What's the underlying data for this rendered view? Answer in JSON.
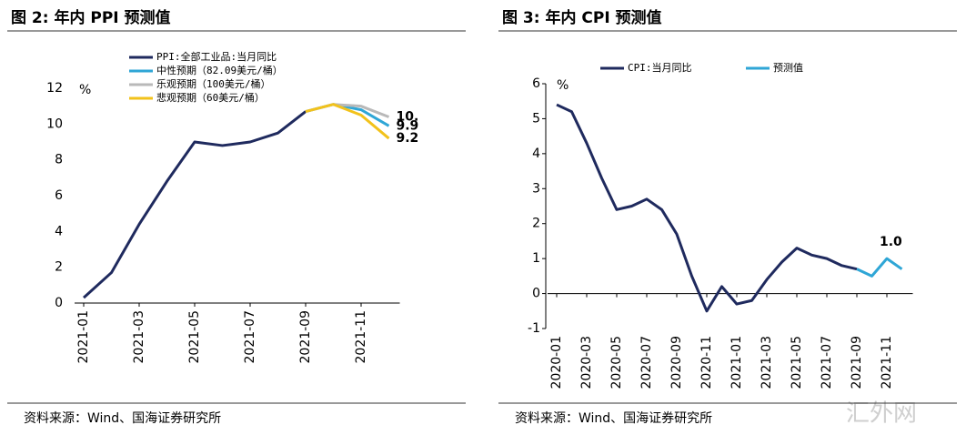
{
  "watermark": "汇外网",
  "chart_data": [
    {
      "type": "line",
      "title": "图 2:  年内 PPI 预测值",
      "ylabel": "%",
      "source": "资料来源：Wind、国海证券研究所",
      "legend": "upper center",
      "categories": [
        "2021-01",
        null,
        "2021-03",
        null,
        "2021-05",
        null,
        "2021-07",
        null,
        "2021-09",
        null,
        "2021-11",
        null
      ],
      "ylim": [
        0,
        12
      ],
      "yticks": [
        0,
        2,
        4,
        6,
        8,
        10,
        12
      ],
      "series": [
        {
          "name": "PPI:全部工业品:当月同比",
          "color": "#1f2a5e",
          "values": [
            0.3,
            1.7,
            4.4,
            6.8,
            9.0,
            8.8,
            9.0,
            9.5,
            10.7,
            null,
            null,
            null
          ]
        },
        {
          "name": "中性预期（82.09美元/桶）",
          "color": "#2fa6d6",
          "values": [
            null,
            null,
            null,
            null,
            null,
            null,
            null,
            null,
            10.7,
            11.1,
            10.8,
            9.9
          ],
          "value_labels": [
            null,
            null,
            null,
            null,
            null,
            null,
            null,
            null,
            null,
            null,
            null,
            "9.9"
          ]
        },
        {
          "name": "乐观预期（100美元/桶）",
          "color": "#b9b9b9",
          "values": [
            null,
            null,
            null,
            null,
            null,
            null,
            null,
            null,
            10.7,
            11.1,
            11.0,
            10.4
          ],
          "value_labels": [
            null,
            null,
            null,
            null,
            null,
            null,
            null,
            null,
            null,
            null,
            null,
            "10."
          ]
        },
        {
          "name": "悲观预期（60美元/桶）",
          "color": "#f2c21b",
          "values": [
            null,
            null,
            null,
            null,
            null,
            null,
            null,
            null,
            10.7,
            11.1,
            10.5,
            9.2
          ],
          "value_labels": [
            null,
            null,
            null,
            null,
            null,
            null,
            null,
            null,
            null,
            null,
            null,
            "9.2"
          ]
        }
      ]
    },
    {
      "type": "line",
      "title": "图 3:  年内 CPI 预测值",
      "ylabel": "%",
      "source": "资料来源：Wind、国海证券研究所",
      "legend": "upper center",
      "categories": [
        "2020-01",
        null,
        "2020-03",
        null,
        "2020-05",
        null,
        "2020-07",
        null,
        "2020-09",
        null,
        "2020-11",
        null,
        "2021-01",
        null,
        "2021-03",
        null,
        "2021-05",
        null,
        "2021-07",
        null,
        "2021-09",
        null,
        "2021-11",
        null
      ],
      "ylim": [
        -1,
        6
      ],
      "yticks": [
        -1,
        0,
        1,
        2,
        3,
        4,
        5,
        6
      ],
      "series": [
        {
          "name": "CPI:当月同比",
          "color": "#1f2a5e",
          "values": [
            5.4,
            5.2,
            4.3,
            3.3,
            2.4,
            2.5,
            2.7,
            2.4,
            1.7,
            0.5,
            -0.5,
            0.2,
            -0.3,
            -0.2,
            0.4,
            0.9,
            1.3,
            1.1,
            1.0,
            0.8,
            0.7,
            null,
            null,
            null
          ]
        },
        {
          "name": "预测值",
          "color": "#2fa6d6",
          "values": [
            null,
            null,
            null,
            null,
            null,
            null,
            null,
            null,
            null,
            null,
            null,
            null,
            null,
            null,
            null,
            null,
            null,
            null,
            null,
            null,
            0.7,
            0.5,
            1.0,
            0.7
          ],
          "value_labels": [
            null,
            null,
            null,
            null,
            null,
            null,
            null,
            null,
            null,
            null,
            null,
            null,
            null,
            null,
            null,
            null,
            null,
            null,
            null,
            null,
            null,
            null,
            "1.0",
            null
          ]
        }
      ]
    }
  ]
}
